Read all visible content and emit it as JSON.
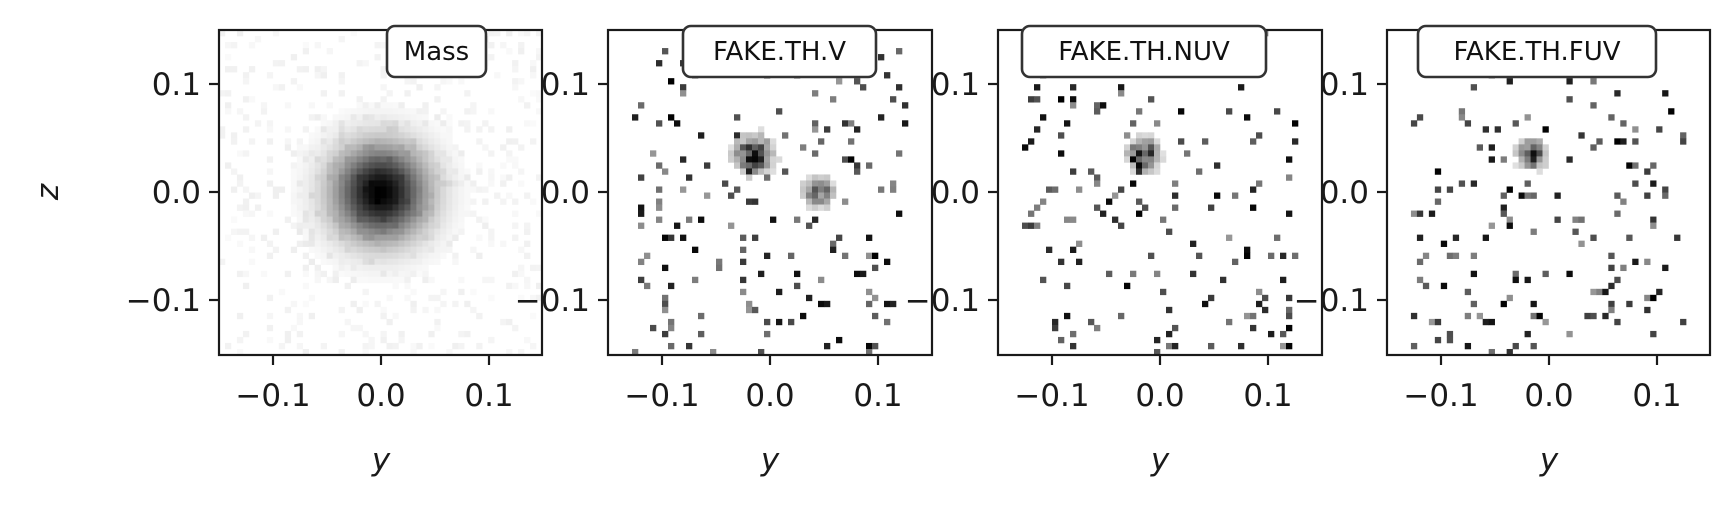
{
  "chart_data": [
    {
      "type": "heatmap",
      "title": "Mass",
      "xlabel": "y",
      "ylabel": "z",
      "xlim": [
        -0.15,
        0.15
      ],
      "ylim": [
        -0.15,
        0.15
      ],
      "xticks": [
        -0.1,
        0.0,
        0.1
      ],
      "yticks": [
        -0.1,
        0.0,
        0.1
      ],
      "xtick_labels": [
        "−0.1",
        "0.0",
        "0.1"
      ],
      "ytick_labels": [
        "−0.1",
        "0.0",
        "0.1"
      ],
      "colormap": "gray_r",
      "sources": [
        {
          "y": 0.0,
          "z": 0.0,
          "spread": 0.03,
          "peak": 1.0
        }
      ]
    },
    {
      "type": "heatmap",
      "title": "FAKE.TH.V",
      "xlabel": "y",
      "ylabel": "",
      "xlim": [
        -0.15,
        0.15
      ],
      "ylim": [
        -0.15,
        0.15
      ],
      "xticks": [
        -0.1,
        0.0,
        0.1
      ],
      "yticks": [
        -0.1,
        0.0,
        0.1
      ],
      "xtick_labels": [
        "−0.1",
        "0.0",
        "0.1"
      ],
      "ytick_labels": [
        "−0.1",
        "0.0",
        "0.1"
      ],
      "colormap": "gray_r",
      "sources": [
        {
          "y": -0.015,
          "z": 0.035,
          "spread": 0.012,
          "peak": 1.0
        },
        {
          "y": 0.045,
          "z": 0.0,
          "spread": 0.01,
          "peak": 0.7
        }
      ]
    },
    {
      "type": "heatmap",
      "title": "FAKE.TH.NUV",
      "xlabel": "y",
      "ylabel": "",
      "xlim": [
        -0.15,
        0.15
      ],
      "ylim": [
        -0.15,
        0.15
      ],
      "xticks": [
        -0.1,
        0.0,
        0.1
      ],
      "yticks": [
        -0.1,
        0.0,
        0.1
      ],
      "xtick_labels": [
        "−0.1",
        "0.0",
        "0.1"
      ],
      "ytick_labels": [
        "−0.1",
        "0.0",
        "0.1"
      ],
      "colormap": "gray_r",
      "sources": [
        {
          "y": -0.015,
          "z": 0.035,
          "spread": 0.01,
          "peak": 1.0
        }
      ]
    },
    {
      "type": "heatmap",
      "title": "FAKE.TH.FUV",
      "xlabel": "y",
      "ylabel": "",
      "xlim": [
        -0.15,
        0.15
      ],
      "ylim": [
        -0.15,
        0.15
      ],
      "xticks": [
        -0.1,
        0.0,
        0.1
      ],
      "yticks": [
        -0.1,
        0.0,
        0.1
      ],
      "xtick_labels": [
        "−0.1",
        "0.0",
        "0.1"
      ],
      "ytick_labels": [
        "−0.1",
        "0.0",
        "0.1"
      ],
      "colormap": "gray_r",
      "sources": [
        {
          "y": -0.015,
          "z": 0.035,
          "spread": 0.009,
          "peak": 1.0
        }
      ]
    }
  ]
}
